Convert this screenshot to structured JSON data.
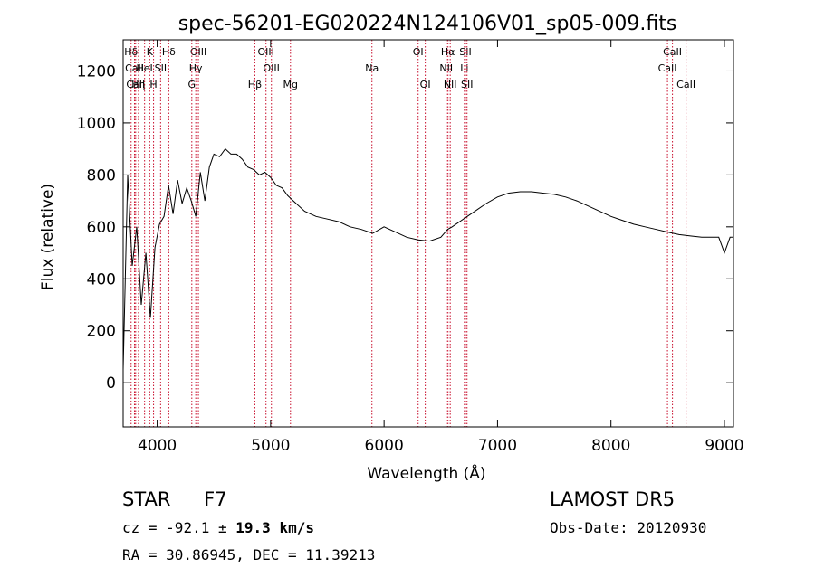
{
  "chart_data": {
    "type": "line",
    "title": "spec-56201-EG020224N124106V01_sp05-009.fits",
    "xlabel": "Wavelength (Å)",
    "ylabel": "Flux (relative)",
    "xlim": [
      3700,
      9080
    ],
    "ylim": [
      -170,
      1320
    ],
    "xticks": [
      4000,
      5000,
      6000,
      7000,
      8000,
      9000
    ],
    "yticks": [
      0,
      200,
      400,
      600,
      800,
      1000,
      1200
    ],
    "grid": false,
    "series": [
      {
        "x": [
          3700,
          3740,
          3780,
          3820,
          3860,
          3900,
          3940,
          3980,
          4020,
          4060,
          4100,
          4140,
          4180,
          4220,
          4260,
          4300,
          4340,
          4380,
          4420,
          4460,
          4500,
          4550,
          4600,
          4650,
          4700,
          4750,
          4800,
          4850,
          4900,
          4950,
          5000,
          5050,
          5100,
          5150,
          5200,
          5300,
          5400,
          5500,
          5600,
          5700,
          5800,
          5900,
          6000,
          6100,
          6200,
          6300,
          6400,
          6500,
          6560,
          6600,
          6700,
          6800,
          6900,
          7000,
          7100,
          7200,
          7300,
          7400,
          7500,
          7600,
          7700,
          7800,
          7900,
          8000,
          8100,
          8200,
          8300,
          8400,
          8500,
          8600,
          8700,
          8800,
          8900,
          8950,
          9000,
          9050,
          9080
        ],
        "y": [
          50,
          800,
          450,
          600,
          300,
          500,
          250,
          520,
          610,
          640,
          760,
          650,
          780,
          690,
          750,
          700,
          640,
          810,
          700,
          830,
          880,
          870,
          900,
          880,
          880,
          860,
          830,
          820,
          800,
          810,
          790,
          760,
          750,
          720,
          700,
          660,
          640,
          630,
          620,
          600,
          590,
          575,
          600,
          580,
          560,
          550,
          545,
          560,
          590,
          600,
          630,
          660,
          690,
          715,
          730,
          735,
          735,
          730,
          725,
          715,
          700,
          680,
          660,
          640,
          625,
          610,
          600,
          590,
          580,
          570,
          565,
          560,
          560,
          560,
          500,
          560,
          560
        ]
      }
    ],
    "line_markers": [
      {
        "name": "Hδ",
        "x": 3770,
        "row": 0
      },
      {
        "name": "CaII",
        "x": 3800,
        "row": 1
      },
      {
        "name": "CaII",
        "x": 3810,
        "row": 2
      },
      {
        "name": "Hη",
        "x": 3835,
        "row": 2
      },
      {
        "name": "K",
        "x": 3934,
        "row": 0
      },
      {
        "name": "HeI",
        "x": 3889,
        "row": 1
      },
      {
        "name": "H",
        "x": 3968,
        "row": 2
      },
      {
        "name": "SII",
        "x": 4030,
        "row": 1
      },
      {
        "name": "Hδ",
        "x": 4102,
        "row": 0
      },
      {
        "name": "OIII",
        "x": 4363,
        "row": 0
      },
      {
        "name": "Hγ",
        "x": 4340,
        "row": 1
      },
      {
        "name": "G",
        "x": 4305,
        "row": 2
      },
      {
        "name": "OIII",
        "x": 4959,
        "row": 0
      },
      {
        "name": "OIII",
        "x": 5007,
        "row": 1
      },
      {
        "name": "Hβ",
        "x": 4861,
        "row": 2
      },
      {
        "name": "Mg",
        "x": 5175,
        "row": 2
      },
      {
        "name": "Na",
        "x": 5893,
        "row": 1
      },
      {
        "name": "OI",
        "x": 6300,
        "row": 0
      },
      {
        "name": "OI",
        "x": 6363,
        "row": 2
      },
      {
        "name": "Hα",
        "x": 6563,
        "row": 0
      },
      {
        "name": "SII",
        "x": 6717,
        "row": 0
      },
      {
        "name": "NII",
        "x": 6548,
        "row": 1
      },
      {
        "name": "Li",
        "x": 6708,
        "row": 1
      },
      {
        "name": "NII",
        "x": 6583,
        "row": 2
      },
      {
        "name": "SII",
        "x": 6731,
        "row": 2
      },
      {
        "name": "CaII",
        "x": 8542,
        "row": 0
      },
      {
        "name": "CaII",
        "x": 8498,
        "row": 1
      },
      {
        "name": "CaII",
        "x": 8662,
        "row": 2
      }
    ]
  },
  "info": {
    "class": "STAR",
    "subclass": "F7",
    "survey": "LAMOST DR5",
    "cz_label": "cz =",
    "cz_value": "-92.1",
    "pm": "±",
    "cz_err": "19.3",
    "cz_unit": "km/s",
    "obs_date": "Obs-Date: 20120930",
    "coords": "RA =  30.86945, DEC =  11.39213"
  },
  "colors": {
    "line": "#000000",
    "marker": "#c8102e"
  }
}
